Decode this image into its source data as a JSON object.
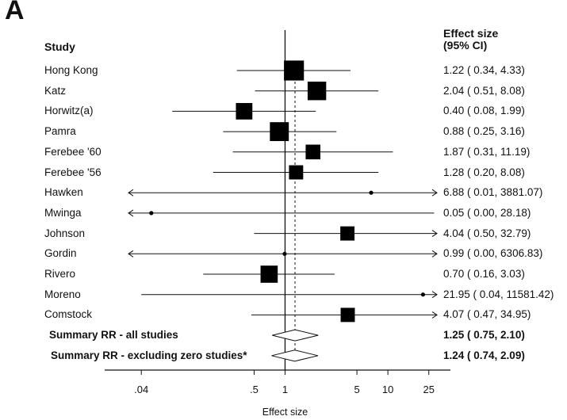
{
  "panel_label": "A",
  "chart_data": {
    "type": "forest",
    "column_headers": {
      "study": "Study",
      "effect_line1": "Effect size",
      "effect_line2": "(95% CI)"
    },
    "xlabel": "Effect size",
    "x_scale": "log",
    "xlim": [
      0.03,
      30
    ],
    "xticks": [
      ".04",
      ".5",
      "1",
      "5",
      "10",
      "25"
    ],
    "xtick_values": [
      0.04,
      0.5,
      1,
      5,
      10,
      25
    ],
    "reference_line": 1,
    "overall_line": 1.25,
    "studies": [
      {
        "name": "Hong Kong",
        "es": 1.22,
        "lo": 0.34,
        "hi": 4.33,
        "weight": 0.78,
        "ci_text": "1.22 ( 0.34, 4.33)"
      },
      {
        "name": "Katz",
        "es": 2.04,
        "lo": 0.51,
        "hi": 8.08,
        "weight": 0.7,
        "ci_text": "2.04 ( 0.51, 8.08)"
      },
      {
        "name": "Horwitz(a)",
        "es": 0.4,
        "lo": 0.08,
        "hi": 1.99,
        "weight": 0.58,
        "ci_text": "0.40 ( 0.08, 1.99)"
      },
      {
        "name": "Pamra",
        "es": 0.88,
        "lo": 0.25,
        "hi": 3.16,
        "weight": 0.72,
        "ci_text": "0.88 ( 0.25, 3.16)"
      },
      {
        "name": "Ferebee '60",
        "es": 1.87,
        "lo": 0.31,
        "hi": 11.19,
        "weight": 0.48,
        "ci_text": "1.87 ( 0.31, 11.19)"
      },
      {
        "name": "Ferebee '56",
        "es": 1.28,
        "lo": 0.2,
        "hi": 8.08,
        "weight": 0.45,
        "ci_text": "1.28 ( 0.20, 8.08)"
      },
      {
        "name": "Hawken",
        "es": 6.88,
        "lo": 0.01,
        "hi": 3881.07,
        "weight": 0.12,
        "ci_text": "6.88 ( 0.01, 3881.07)"
      },
      {
        "name": "Mwinga",
        "es": 0.05,
        "lo": 0.0,
        "hi": 28.18,
        "weight": 0.12,
        "ci_text": "0.05 ( 0.00, 28.18)"
      },
      {
        "name": "Johnson",
        "es": 4.04,
        "lo": 0.5,
        "hi": 32.79,
        "weight": 0.45,
        "ci_text": "4.04 ( 0.50, 32.79)"
      },
      {
        "name": "Gordin",
        "es": 0.99,
        "lo": 0.0,
        "hi": 6306.83,
        "weight": 0.08,
        "ci_text": "0.99 ( 0.00, 6306.83)"
      },
      {
        "name": "Rivero",
        "es": 0.7,
        "lo": 0.16,
        "hi": 3.03,
        "weight": 0.62,
        "ci_text": "0.70 ( 0.16, 3.03)"
      },
      {
        "name": "Moreno",
        "es": 21.95,
        "lo": 0.04,
        "hi": 11581.42,
        "weight": 0.1,
        "ci_text": "21.95 ( 0.04, 11581.42)"
      },
      {
        "name": "Comstock",
        "es": 4.07,
        "lo": 0.47,
        "hi": 34.95,
        "weight": 0.45,
        "ci_text": "4.07 ( 0.47, 34.95)"
      }
    ],
    "summaries": [
      {
        "name": "Summary RR - all studies",
        "es": 1.25,
        "lo": 0.75,
        "hi": 2.1,
        "ci_text": "1.25 ( 0.75, 2.10)"
      },
      {
        "name": "Summary RR - excluding zero studies*",
        "es": 1.24,
        "lo": 0.74,
        "hi": 2.09,
        "ci_text": "1.24 ( 0.74, 2.09)"
      }
    ]
  }
}
